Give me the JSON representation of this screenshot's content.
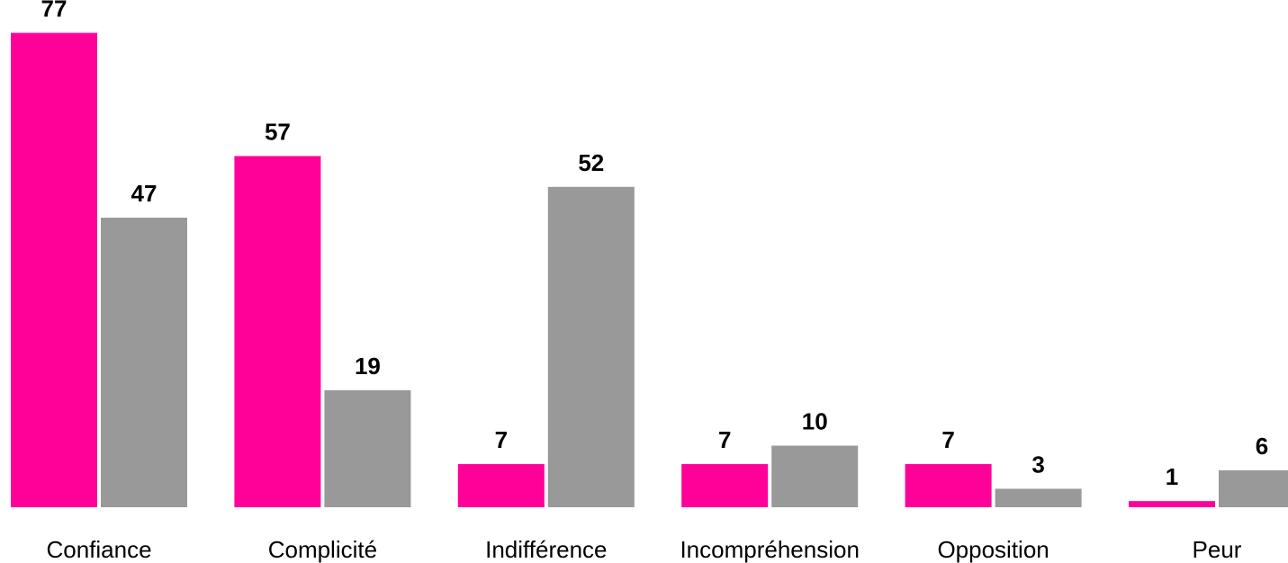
{
  "chart_data": {
    "type": "bar",
    "categories": [
      "Confiance",
      "Complicité",
      "Indifférence",
      "Incompréhension",
      "Opposition",
      "Peur"
    ],
    "series": [
      {
        "values": [
          77,
          57,
          7,
          7,
          7,
          1
        ],
        "color": "#FF0099"
      },
      {
        "values": [
          47,
          19,
          52,
          10,
          3,
          6
        ],
        "color": "#999999"
      }
    ],
    "title": "",
    "xlabel": "",
    "ylabel": "",
    "ylim": [
      0,
      80
    ],
    "grid": false,
    "data_labels": true
  }
}
